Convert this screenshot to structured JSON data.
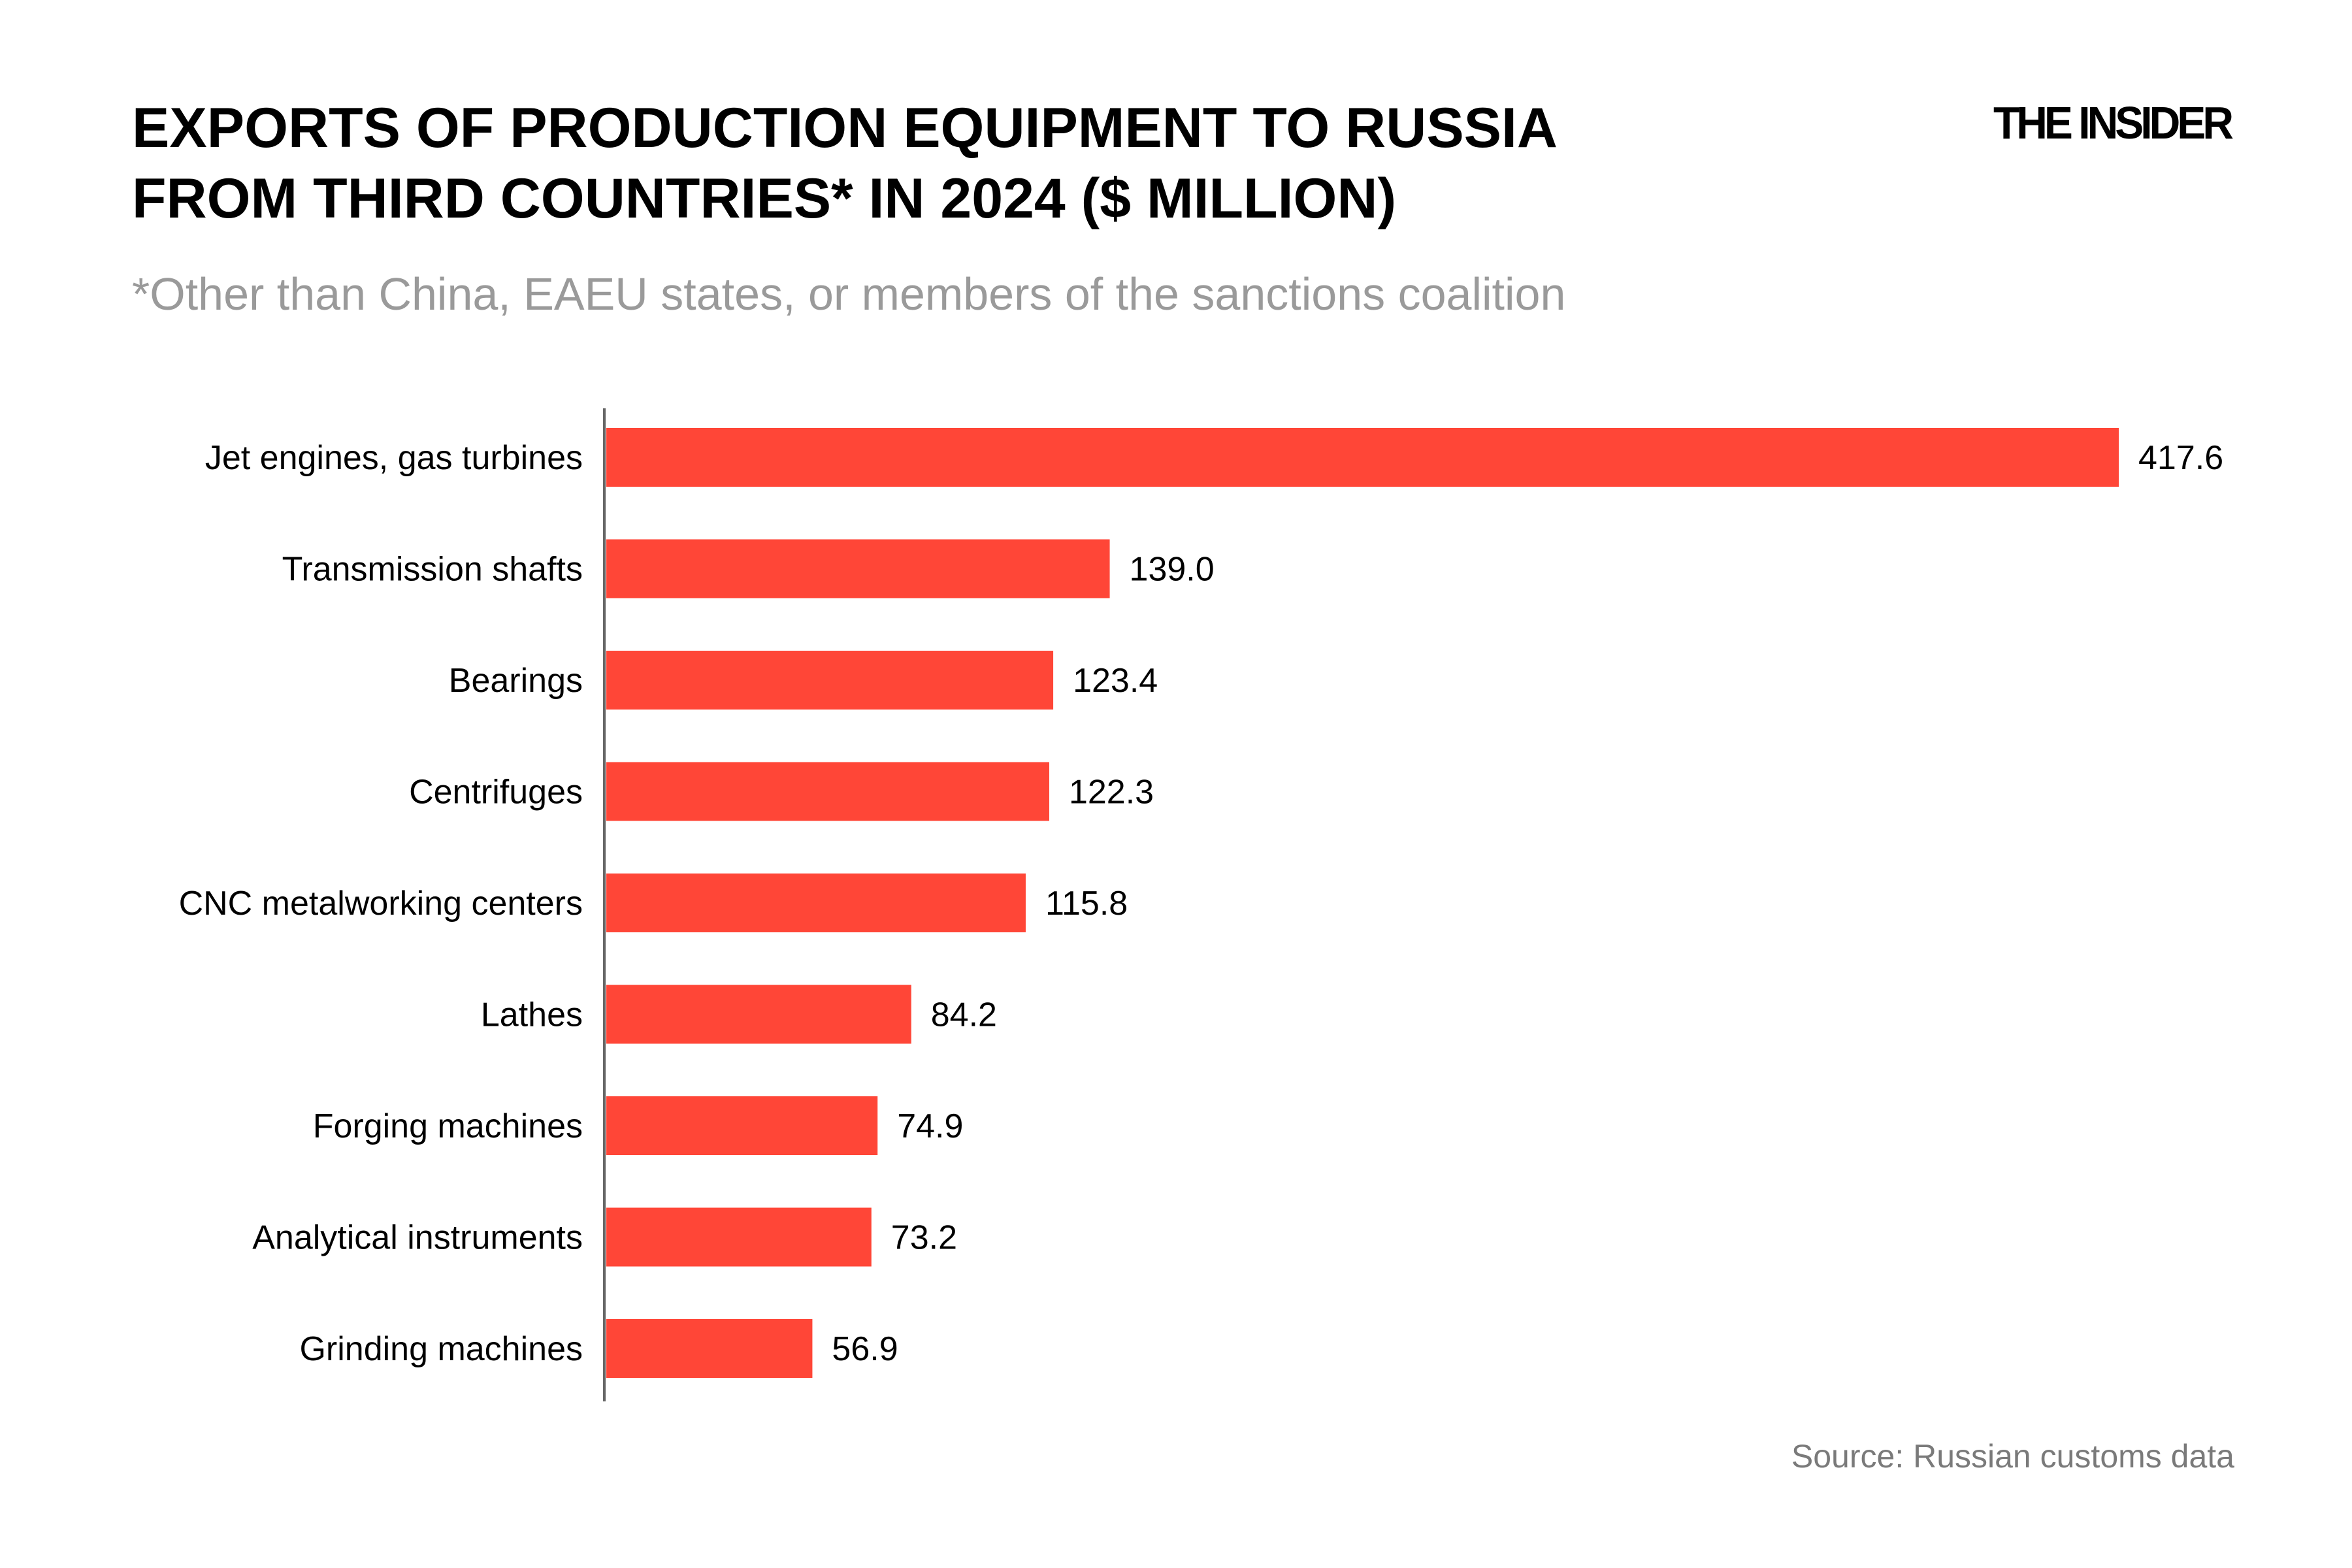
{
  "header": {
    "title_line1": "EXPORTS OF PRODUCTION EQUIPMENT TO RUSSIA",
    "title_line2": "FROM THIRD COUNTRIES* IN 2024 ($ MILLION)",
    "logo": "THE INSIDER",
    "subtitle": "*Other than China, EAEU states, or members of the sanctions coalition"
  },
  "footer": {
    "source": "Source: Russian customs data"
  },
  "colors": {
    "bar": "#FF4637",
    "axis": "#666666"
  },
  "chart_data": {
    "type": "bar",
    "orientation": "horizontal",
    "title": "EXPORTS OF PRODUCTION EQUIPMENT TO RUSSIA FROM THIRD COUNTRIES* IN 2024 ($ MILLION)",
    "categories": [
      "Jet engines, gas turbines",
      "Transmission shafts",
      "Bearings",
      "Centrifuges",
      "CNC metalworking centers",
      "Lathes",
      "Forging machines",
      "Analytical instruments",
      "Grinding machines"
    ],
    "values": [
      417.6,
      139.0,
      123.4,
      122.3,
      115.8,
      84.2,
      74.9,
      73.2,
      56.9
    ],
    "labels": [
      "417.6",
      "139.0",
      "123.4",
      "122.3",
      "115.8",
      "84.2",
      "74.9",
      "73.2",
      "56.9"
    ],
    "xlim": [
      0,
      417.6
    ],
    "grid": false,
    "legend": "none",
    "data_labels": true
  }
}
